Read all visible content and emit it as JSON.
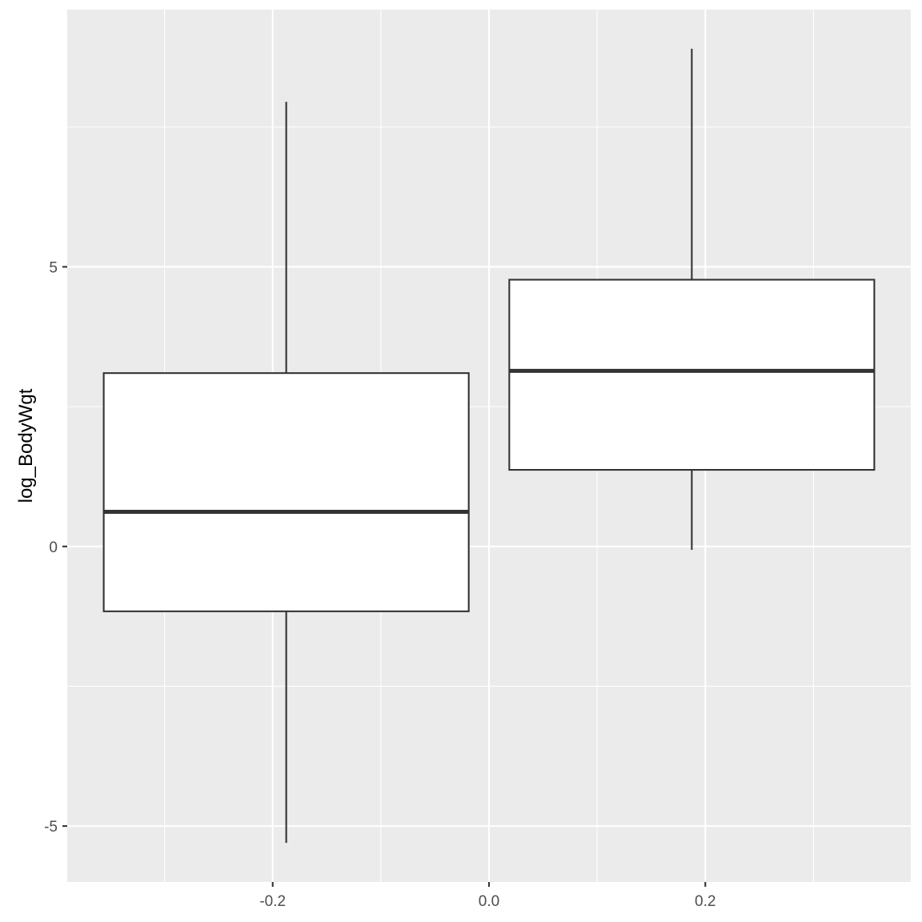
{
  "chart_data": {
    "type": "boxplot",
    "title": "",
    "xlabel": "",
    "ylabel": "log_BodyWgt",
    "xlim": [
      -0.39,
      0.39
    ],
    "ylim": [
      -6.0,
      9.6
    ],
    "x_ticks": [
      -0.2,
      0.0,
      0.2
    ],
    "x_tick_labels": [
      "-0.2",
      "0.0",
      "0.2"
    ],
    "x_minor_ticks": [
      -0.3,
      -0.1,
      0.1,
      0.3
    ],
    "y_ticks": [
      -5,
      0,
      5
    ],
    "y_tick_labels": [
      "-5",
      "0",
      "5"
    ],
    "y_minor_ticks": [
      -2.5,
      2.5,
      7.5
    ],
    "grid": true,
    "boxes": [
      {
        "x": -0.1875,
        "width": 0.3375,
        "lower_whisker": -5.3,
        "q1": -1.16,
        "median": 0.62,
        "q3": 3.1,
        "upper_whisker": 7.95
      },
      {
        "x": 0.1875,
        "width": 0.3375,
        "lower_whisker": -0.06,
        "q1": 1.37,
        "median": 3.14,
        "q3": 4.77,
        "upper_whisker": 8.9
      }
    ]
  }
}
